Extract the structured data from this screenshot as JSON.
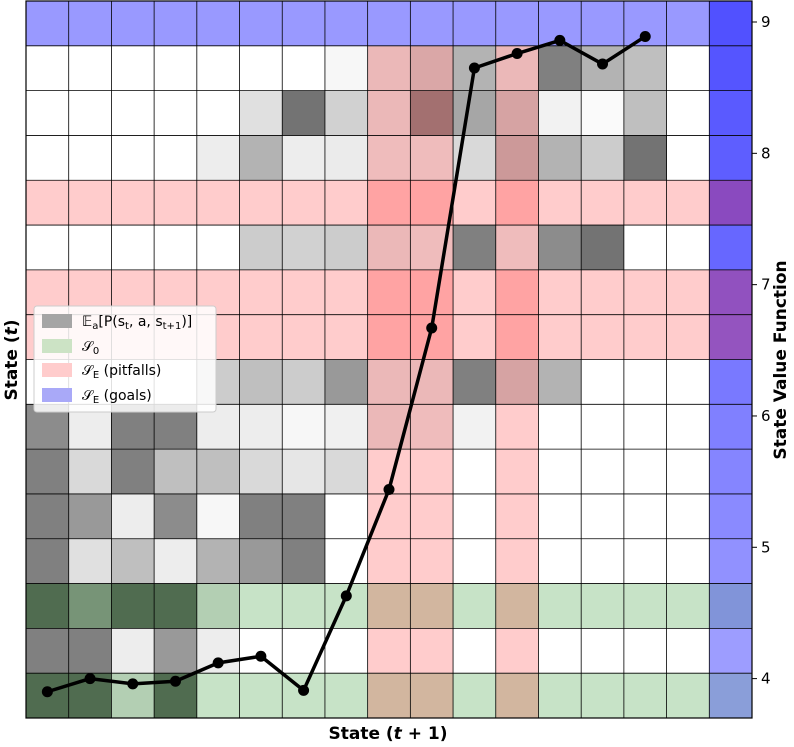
{
  "chart_data": {
    "type": "heatmap",
    "title": "",
    "xlabel": "State (t+1)",
    "ylabel": "State (t)",
    "y2label": "State Value Function",
    "n_rows": 16,
    "n_cols": 16,
    "transition_gray_matrix": [
      [
        0.0,
        0.0,
        0.0,
        0.0,
        0.0,
        0.0,
        0.0,
        0.0,
        0.0,
        0.0,
        0.0,
        0.0,
        0.0,
        0.0,
        0.0,
        0.0
      ],
      [
        0.0,
        0.0,
        0.0,
        0.0,
        0.0,
        0.0,
        0.0,
        0.03,
        0.1,
        0.18,
        0.3,
        0.1,
        0.5,
        0.3,
        0.25,
        0.0
      ],
      [
        0.0,
        0.0,
        0.0,
        0.0,
        0.0,
        0.12,
        0.55,
        0.18,
        0.1,
        0.45,
        0.35,
        0.2,
        0.05,
        0.02,
        0.25,
        0.0
      ],
      [
        0.0,
        0.0,
        0.0,
        0.0,
        0.07,
        0.3,
        0.07,
        0.08,
        0.08,
        0.08,
        0.15,
        0.25,
        0.3,
        0.2,
        0.55,
        0.0
      ],
      [
        0.0,
        0.0,
        0.0,
        0.0,
        0.0,
        0.0,
        0.0,
        0.0,
        0.0,
        0.0,
        0.0,
        0.0,
        0.0,
        0.0,
        0.0,
        0.0
      ],
      [
        0.0,
        0.0,
        0.0,
        0.0,
        0.0,
        0.2,
        0.18,
        0.2,
        0.1,
        0.08,
        0.5,
        0.08,
        0.45,
        0.55,
        0.0,
        0.0
      ],
      [
        0.0,
        0.0,
        0.0,
        0.0,
        0.0,
        0.0,
        0.0,
        0.0,
        0.0,
        0.0,
        0.0,
        0.0,
        0.0,
        0.0,
        0.0,
        0.0
      ],
      [
        0.0,
        0.0,
        0.0,
        0.0,
        0.0,
        0.0,
        0.0,
        0.0,
        0.0,
        0.0,
        0.0,
        0.0,
        0.0,
        0.0,
        0.0,
        0.0
      ],
      [
        0.0,
        0.0,
        0.0,
        0.0,
        0.2,
        0.25,
        0.2,
        0.4,
        0.1,
        0.1,
        0.5,
        0.2,
        0.3,
        0.0,
        0.0,
        0.0
      ],
      [
        0.45,
        0.07,
        0.5,
        0.5,
        0.07,
        0.07,
        0.03,
        0.06,
        0.1,
        0.08,
        0.05,
        0.0,
        0.0,
        0.0,
        0.0,
        0.0
      ],
      [
        0.5,
        0.15,
        0.5,
        0.25,
        0.25,
        0.15,
        0.1,
        0.15,
        0.0,
        0.0,
        0.0,
        0.0,
        0.0,
        0.0,
        0.0,
        0.0
      ],
      [
        0.5,
        0.4,
        0.07,
        0.45,
        0.03,
        0.5,
        0.5,
        0.0,
        0.0,
        0.0,
        0.0,
        0.0,
        0.0,
        0.0,
        0.0,
        0.0
      ],
      [
        0.5,
        0.12,
        0.25,
        0.07,
        0.3,
        0.4,
        0.5,
        0.0,
        0.0,
        0.0,
        0.0,
        0.0,
        0.0,
        0.0,
        0.0,
        0.0
      ],
      [
        0.6,
        0.4,
        0.6,
        0.6,
        0.1,
        0.0,
        0.0,
        0.0,
        0.0,
        0.0,
        0.0,
        0.0,
        0.0,
        0.0,
        0.0,
        0.0
      ],
      [
        0.5,
        0.5,
        0.07,
        0.4,
        0.07,
        0.0,
        0.0,
        0.0,
        0.0,
        0.0,
        0.0,
        0.0,
        0.0,
        0.0,
        0.0,
        0.0
      ],
      [
        0.6,
        0.6,
        0.1,
        0.6,
        0.0,
        0.0,
        0.0,
        0.0,
        0.0,
        0.0,
        0.0,
        0.0,
        0.0,
        0.0,
        0.0,
        0.0
      ]
    ],
    "initial_states_rows": [
      13,
      15
    ],
    "pitfall_rows": [
      4,
      6,
      7
    ],
    "pitfall_cols": [
      8,
      9,
      11
    ],
    "goal_rows": [
      0
    ],
    "goal_cols": [
      15
    ],
    "value_function_column": [
      8.9,
      8.62,
      8.32,
      8.06,
      7.78,
      7.52,
      7.2,
      6.97,
      6.45,
      6.04,
      5.7,
      5.38,
      4.96,
      4.58,
      4.22,
      3.88
    ],
    "value_function_line": {
      "x": [
        0,
        1,
        2,
        3,
        4,
        5,
        6,
        7,
        8,
        9,
        10,
        11,
        12,
        13,
        14
      ],
      "y": [
        3.9,
        4.0,
        3.96,
        3.98,
        4.12,
        4.17,
        3.91,
        4.63,
        5.44,
        6.67,
        8.65,
        8.76,
        8.86,
        8.68,
        8.89
      ]
    },
    "y2lim": [
      3.7,
      9.16
    ],
    "y2ticks": [
      "4",
      "5",
      "6",
      "7",
      "8",
      "9"
    ],
    "colors": {
      "transition": "#000000",
      "initial": "#008000",
      "pitfall": "#ff0000",
      "goal": "#0000ff",
      "line": "#000000"
    },
    "legend": {
      "location": "center-left",
      "entries": [
        {
          "label": "𝔼a[P(st, a, st+1)]",
          "color": "#a5a5a5"
        },
        {
          "label": "𝒮0",
          "color": "#cce3c5"
        },
        {
          "label": "𝒮E (pitfalls)",
          "color": "#ffcccc"
        },
        {
          "label": "𝒮E (goals)",
          "color": "#a9a9f8"
        }
      ]
    },
    "grid": true
  }
}
